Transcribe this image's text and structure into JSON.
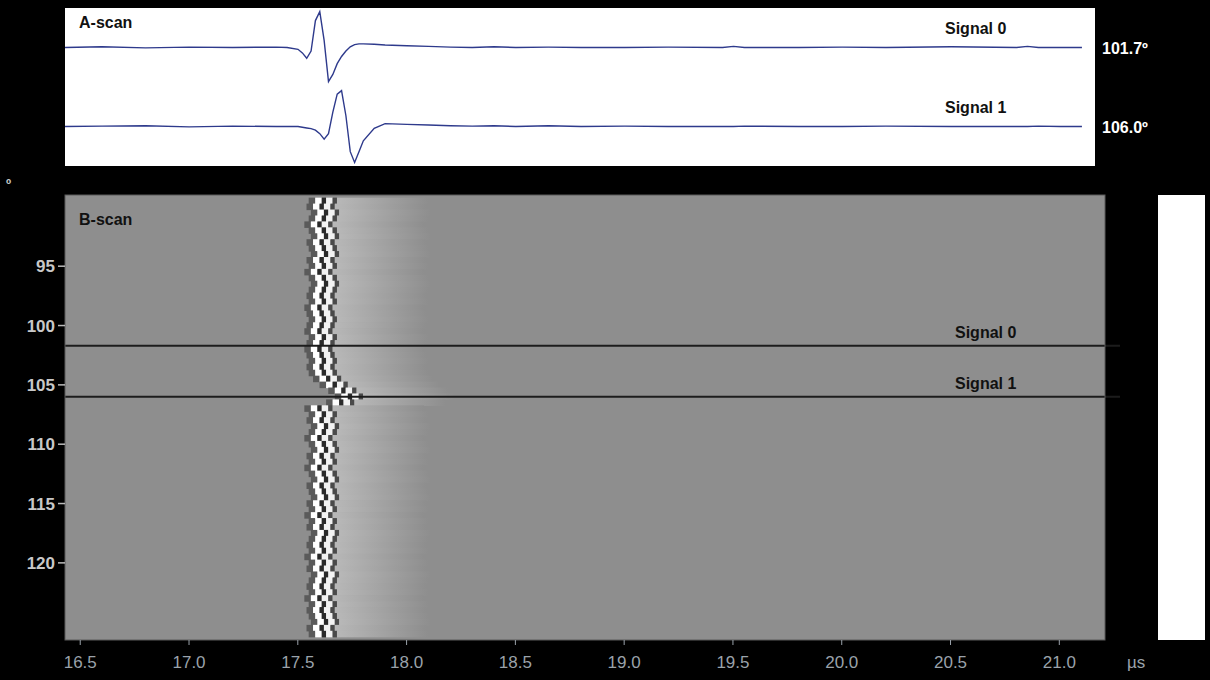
{
  "chart_data": [
    {
      "type": "line",
      "title": "A-scan",
      "tick_labels": false,
      "xlim": [
        16.43,
        21.16
      ],
      "ylim": [
        -1.1,
        1.1
      ],
      "x": [
        16.43,
        16.6,
        16.8,
        17.0,
        17.2,
        17.4,
        17.45,
        17.5,
        17.52,
        17.54,
        17.56,
        17.58,
        17.6,
        17.62,
        17.64,
        17.66,
        17.68,
        17.7,
        17.72,
        17.74,
        17.76,
        17.78,
        17.8,
        17.85,
        17.9,
        18.0,
        18.1,
        18.2,
        18.3,
        18.4,
        18.5,
        18.65,
        18.8,
        19.0,
        19.2,
        19.45,
        19.5,
        19.55,
        19.8,
        20.0,
        20.2,
        20.5,
        20.8,
        20.85,
        20.9,
        21.0,
        21.1
      ],
      "series": [
        {
          "name": "Signal 0",
          "color": "#2e3a8c",
          "angle": 101.7,
          "angle_label": "101.7º",
          "values": [
            0,
            0.02,
            -0.01,
            0.01,
            0,
            0.01,
            0,
            -0.05,
            -0.15,
            -0.3,
            -0.1,
            0.75,
            1.0,
            0.2,
            -0.95,
            -0.75,
            -0.45,
            -0.25,
            -0.1,
            0.02,
            0.08,
            0.1,
            0.1,
            0.09,
            0.07,
            0.05,
            0.03,
            0.01,
            0,
            0.02,
            0,
            0.01,
            0,
            0,
            0.01,
            0,
            0.03,
            0,
            0,
            0.01,
            0,
            0.02,
            0,
            0.03,
            0,
            0,
            0
          ]
        },
        {
          "name": "Signal 1",
          "color": "#2e3a8c",
          "angle": 106.0,
          "angle_label": "106.0º",
          "values": [
            0,
            0.01,
            0.02,
            -0.01,
            0.01,
            0,
            0,
            0,
            -0.02,
            -0.04,
            -0.06,
            -0.1,
            -0.2,
            -0.35,
            -0.2,
            0.4,
            0.9,
            1.0,
            0.3,
            -0.7,
            -1.0,
            -0.7,
            -0.4,
            -0.05,
            0.08,
            0.06,
            0.04,
            0.02,
            0.01,
            0.02,
            0,
            0.02,
            0,
            0.01,
            0,
            0,
            0,
            0.01,
            0,
            0,
            0.01,
            0,
            0,
            0,
            0.01,
            0,
            0
          ]
        }
      ]
    },
    {
      "type": "bscan",
      "title": "B-scan",
      "x_label": "µs",
      "y_label": "º",
      "xlim": [
        16.43,
        21.21
      ],
      "ylim": [
        89,
        126.5
      ],
      "xticks": [
        16.5,
        {
          "value": 17,
          "label": "17.0"
        },
        17.5,
        {
          "value": 18,
          "label": "18.0"
        },
        18.5,
        {
          "value": 19,
          "label": "19.0"
        },
        19.5,
        {
          "value": 20,
          "label": "20.0"
        },
        20.5,
        {
          "value": 21,
          "label": "21.0"
        }
      ],
      "yticks": [
        95,
        100,
        105,
        110,
        115,
        120
      ],
      "y": [
        89.5,
        90,
        90.5,
        91,
        91.5,
        92,
        92.5,
        93,
        93.5,
        94,
        94.5,
        95,
        95.5,
        96,
        96.5,
        97,
        97.5,
        98,
        98.5,
        99,
        99.5,
        100,
        100.5,
        101,
        101.5,
        102,
        102.5,
        103,
        103.5,
        104,
        104.5,
        105,
        105.5,
        106,
        106.5,
        107,
        107.5,
        108,
        108.5,
        109,
        109.5,
        110,
        110.5,
        111,
        111.5,
        112,
        112.5,
        113,
        113.5,
        114,
        114.5,
        115,
        115.5,
        116,
        116.5,
        117,
        117.5,
        118,
        118.5,
        119,
        119.5,
        120,
        120.5,
        121,
        121.5,
        122,
        122.5,
        123,
        123.5,
        124,
        124.5,
        125,
        125.5,
        126
      ],
      "x": [
        17.62,
        17.61,
        17.63,
        17.62,
        17.6,
        17.62,
        17.63,
        17.61,
        17.62,
        17.63,
        17.61,
        17.62,
        17.6,
        17.62,
        17.63,
        17.62,
        17.61,
        17.62,
        17.6,
        17.61,
        17.62,
        17.61,
        17.6,
        17.62,
        17.61,
        17.6,
        17.61,
        17.62,
        17.61,
        17.62,
        17.64,
        17.67,
        17.71,
        17.74,
        17.7,
        17.6,
        17.62,
        17.61,
        17.63,
        17.62,
        17.6,
        17.62,
        17.63,
        17.61,
        17.62,
        17.6,
        17.62,
        17.63,
        17.61,
        17.62,
        17.63,
        17.61,
        17.62,
        17.6,
        17.62,
        17.61,
        17.63,
        17.62,
        17.61,
        17.62,
        17.6,
        17.62,
        17.61,
        17.63,
        17.62,
        17.61,
        17.62,
        17.6,
        17.62,
        17.61,
        17.62,
        17.63,
        17.61,
        17.62
      ]
    }
  ]
}
